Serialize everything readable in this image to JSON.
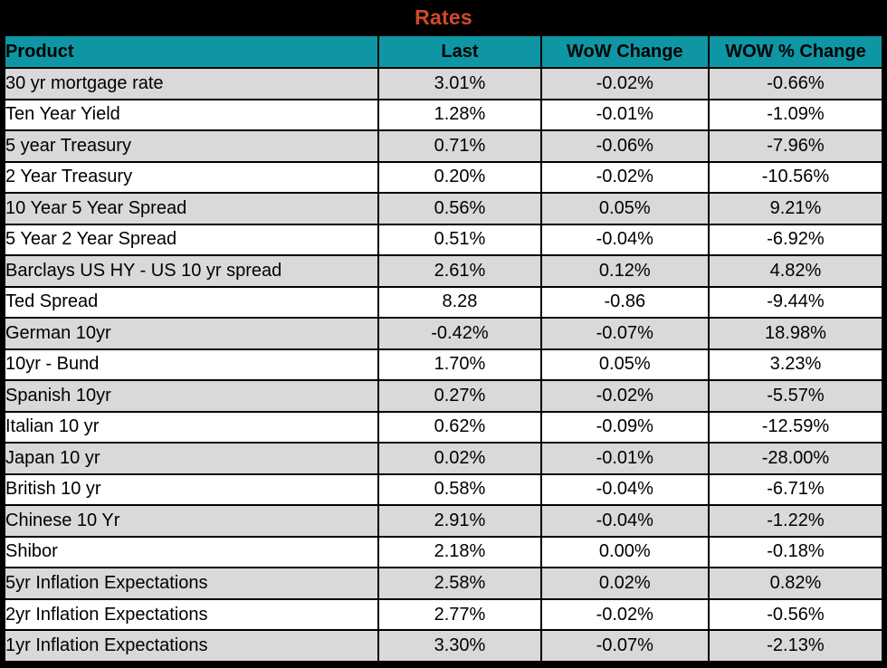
{
  "title": "Rates",
  "colors": {
    "title_orange": "#d1492a",
    "header_teal": "#0e96a4",
    "stripe_gray": "#d9d9d9",
    "row_white": "#ffffff",
    "border_black": "#000000"
  },
  "chart_data": {
    "type": "table",
    "title": "Rates",
    "columns": [
      "Product",
      "Last",
      "WoW Change",
      "WOW % Change"
    ],
    "rows": [
      {
        "product": "30 yr mortgage rate",
        "last": "3.01%",
        "wow_change": "-0.02%",
        "wow_pct_change": "-0.66%"
      },
      {
        "product": "Ten Year Yield",
        "last": "1.28%",
        "wow_change": "-0.01%",
        "wow_pct_change": "-1.09%"
      },
      {
        "product": "5 year Treasury",
        "last": "0.71%",
        "wow_change": "-0.06%",
        "wow_pct_change": "-7.96%"
      },
      {
        "product": "2 Year Treasury",
        "last": "0.20%",
        "wow_change": "-0.02%",
        "wow_pct_change": "-10.56%"
      },
      {
        "product": "10 Year 5 Year Spread",
        "last": "0.56%",
        "wow_change": "0.05%",
        "wow_pct_change": "9.21%"
      },
      {
        "product": "5 Year 2 Year Spread",
        "last": "0.51%",
        "wow_change": "-0.04%",
        "wow_pct_change": "-6.92%"
      },
      {
        "product": "Barclays US HY - US 10 yr spread",
        "last": "2.61%",
        "wow_change": "0.12%",
        "wow_pct_change": "4.82%"
      },
      {
        "product": "Ted Spread",
        "last": "8.28",
        "wow_change": "-0.86",
        "wow_pct_change": "-9.44%"
      },
      {
        "product": "German 10yr",
        "last": "-0.42%",
        "wow_change": "-0.07%",
        "wow_pct_change": "18.98%"
      },
      {
        "product": "10yr - Bund",
        "last": "1.70%",
        "wow_change": "0.05%",
        "wow_pct_change": "3.23%"
      },
      {
        "product": "Spanish 10yr",
        "last": "0.27%",
        "wow_change": "-0.02%",
        "wow_pct_change": "-5.57%"
      },
      {
        "product": "Italian 10 yr",
        "last": "0.62%",
        "wow_change": "-0.09%",
        "wow_pct_change": "-12.59%"
      },
      {
        "product": "Japan 10 yr",
        "last": "0.02%",
        "wow_change": "-0.01%",
        "wow_pct_change": "-28.00%"
      },
      {
        "product": "British 10 yr",
        "last": "0.58%",
        "wow_change": "-0.04%",
        "wow_pct_change": "-6.71%"
      },
      {
        "product": "Chinese 10 Yr",
        "last": "2.91%",
        "wow_change": "-0.04%",
        "wow_pct_change": "-1.22%"
      },
      {
        "product": "Shibor",
        "last": "2.18%",
        "wow_change": "0.00%",
        "wow_pct_change": "-0.18%"
      },
      {
        "product": "5yr Inflation Expectations",
        "last": "2.58%",
        "wow_change": "0.02%",
        "wow_pct_change": "0.82%"
      },
      {
        "product": "2yr Inflation Expectations",
        "last": "2.77%",
        "wow_change": "-0.02%",
        "wow_pct_change": "-0.56%"
      },
      {
        "product": "1yr Inflation Expectations",
        "last": "3.30%",
        "wow_change": "-0.07%",
        "wow_pct_change": "-2.13%"
      }
    ]
  }
}
